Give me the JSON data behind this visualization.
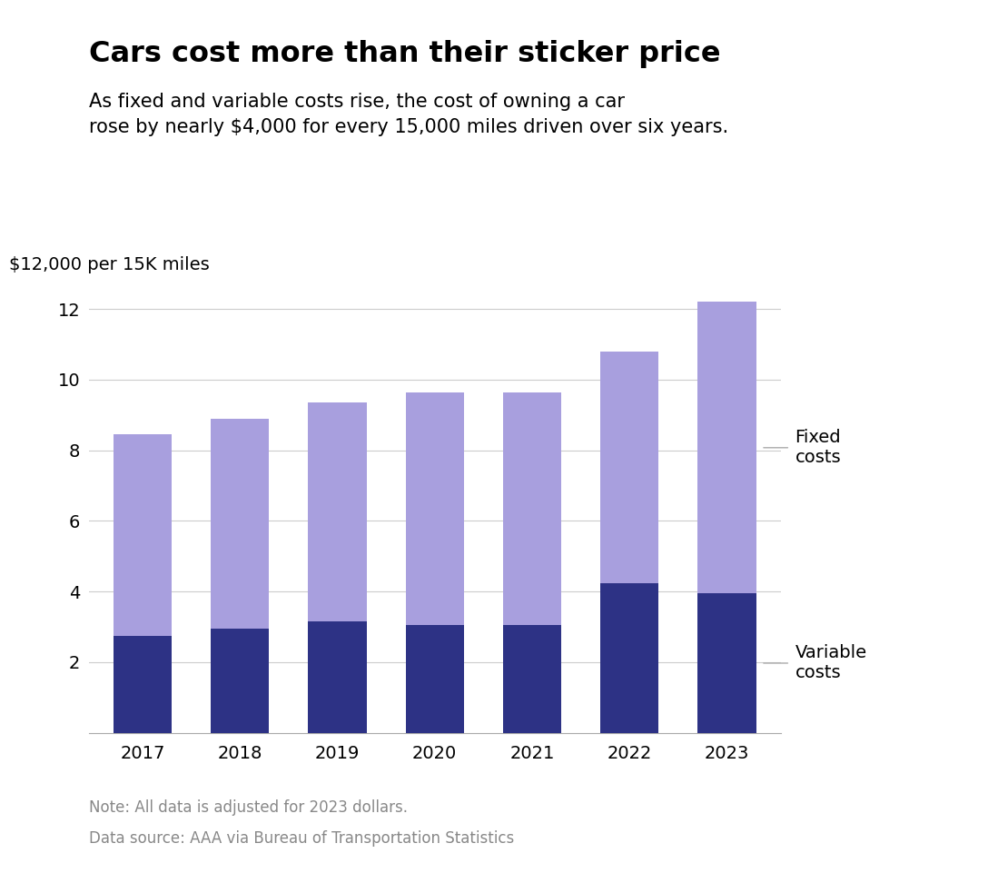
{
  "title": "Cars cost more than their sticker price",
  "subtitle": "As fixed and variable costs rise, the cost of owning a car\nrose by nearly $4,000 for every 15,000 miles driven over six years.",
  "ylabel": "$12,000 per 15K miles",
  "note1": "Note: All data is adjusted for 2023 dollars.",
  "note2": "Data source: AAA via Bureau of Transportation Statistics",
  "years": [
    "2017",
    "2018",
    "2019",
    "2020",
    "2021",
    "2022",
    "2023"
  ],
  "variable_costs": [
    2.75,
    2.95,
    3.15,
    3.05,
    3.05,
    4.25,
    3.95
  ],
  "fixed_costs": [
    5.7,
    5.95,
    6.2,
    6.6,
    6.6,
    6.55,
    8.25
  ],
  "variable_color": "#2d3285",
  "fixed_color": "#a89fde",
  "bar_width": 0.6,
  "ylim": [
    0,
    13
  ],
  "yticks": [
    2,
    4,
    6,
    8,
    10,
    12
  ],
  "fixed_label": "Fixed\ncosts",
  "variable_label": "Variable\ncosts",
  "background_color": "#ffffff",
  "title_fontsize": 23,
  "subtitle_fontsize": 15,
  "tick_fontsize": 14,
  "ylabel_fontsize": 14,
  "note_fontsize": 12,
  "label_fontsize": 14,
  "grid_color": "#cccccc",
  "note_color": "#888888"
}
